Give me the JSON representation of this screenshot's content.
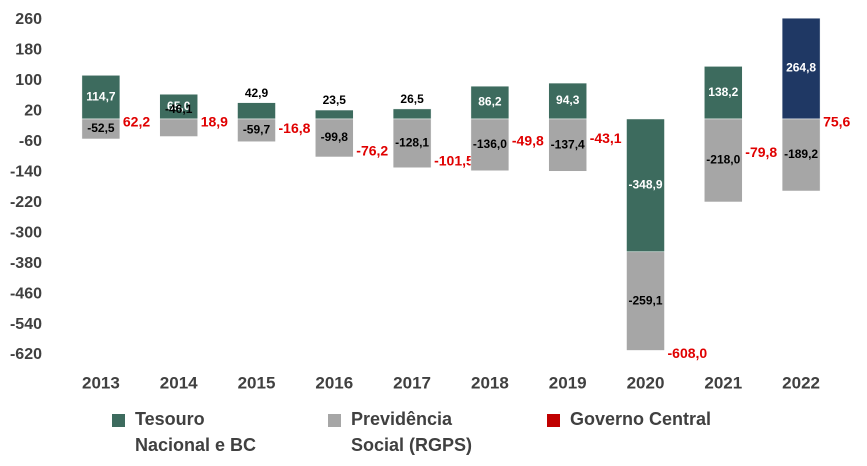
{
  "chart_data": {
    "type": "bar",
    "categories": [
      "2013",
      "2014",
      "2015",
      "2016",
      "2017",
      "2018",
      "2019",
      "2020",
      "2021",
      "2022"
    ],
    "series": [
      {
        "name": "Tesouro\nNacional e BC",
        "color": "#3d6b5e",
        "colors": [
          "#3d6b5e",
          "#3d6b5e",
          "#3d6b5e",
          "#3d6b5e",
          "#3d6b5e",
          "#3d6b5e",
          "#3d6b5e",
          "#3d6b5e",
          "#3d6b5e",
          "#1f3864"
        ],
        "values": [
          114.7,
          65.0,
          42.9,
          23.5,
          26.5,
          86.2,
          94.3,
          -348.9,
          138.2,
          264.8
        ],
        "value_labels": [
          "114,7",
          "65,0",
          "42,9",
          "23,5",
          "26,5",
          "86,2",
          "94,3",
          "-348,9",
          "138,2",
          "264,8"
        ]
      },
      {
        "name": "Previdência\nSocial (RGPS)",
        "color": "#a6a6a6",
        "values": [
          -52.5,
          -46.1,
          -59.7,
          -99.8,
          -128.1,
          -136.0,
          -137.4,
          -259.1,
          -218.0,
          -189.2
        ],
        "value_labels": [
          "-52,5",
          "-46,1",
          "-59,7",
          "-99,8",
          "-128,1",
          "-136,0",
          "-137,4",
          "-259,1",
          "-218,0",
          "-189,2"
        ]
      },
      {
        "name": "Governo Central",
        "color": "#c00000",
        "label_color": "#e00000",
        "values": [
          62.2,
          18.9,
          -16.8,
          -76.2,
          -101.5,
          -49.8,
          -43.1,
          -608.0,
          -79.8,
          75.6
        ],
        "value_labels": [
          "62,2",
          "18,9",
          "-16,8",
          "-76,2",
          "-101,5",
          "-49,8",
          "-43,1",
          "-608,0",
          "-79,8",
          "75,6"
        ]
      }
    ],
    "ylim": [
      -620,
      260
    ],
    "yticks": [
      260,
      180,
      100,
      20,
      -60,
      -140,
      -220,
      -300,
      -380,
      -460,
      -540,
      -620
    ]
  }
}
